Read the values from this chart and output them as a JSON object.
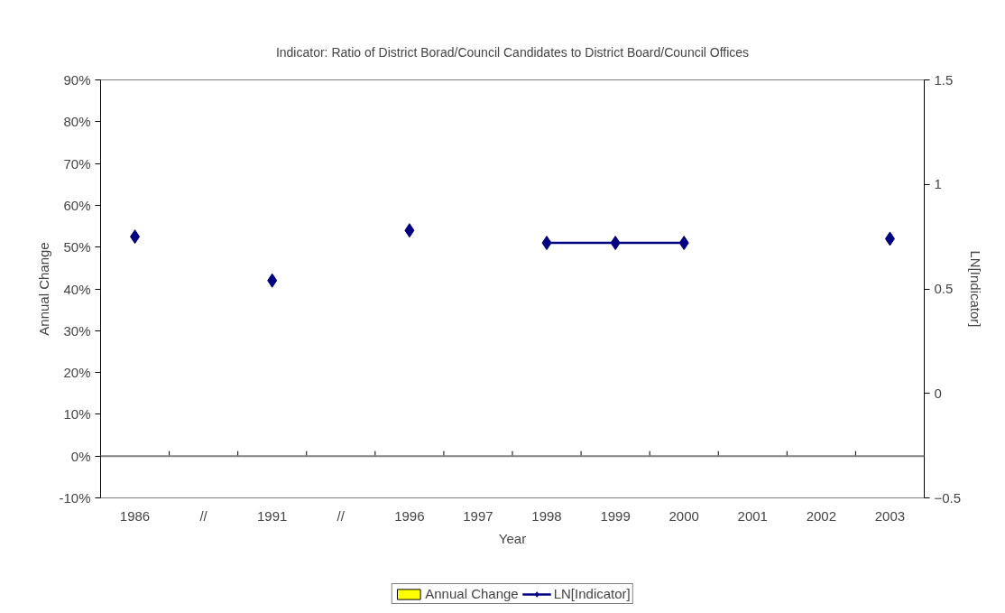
{
  "chart_data": {
    "type": "line",
    "title": "Indicator: Ratio of District Borad/Council Candidates to District Board/Council Offices",
    "xlabel": "Year",
    "ylabel": "Annual Change",
    "y2label": "LN[Indicator]",
    "categories": [
      "1986",
      "//",
      "1991",
      "//",
      "1996",
      "1997",
      "1998",
      "1999",
      "2000",
      "2001",
      "2002",
      "2003"
    ],
    "series": [
      {
        "name": "Annual Change",
        "type": "bar",
        "color": "#ffff00",
        "values": [
          null,
          null,
          null,
          null,
          null,
          null,
          null,
          null,
          null,
          null,
          null,
          null
        ]
      },
      {
        "name": "LN[Indicator]",
        "axis": "y2",
        "color": "#000080",
        "marker": "diamond",
        "values": [
          0.75,
          null,
          0.54,
          null,
          0.78,
          null,
          0.72,
          0.72,
          0.72,
          null,
          null,
          0.74
        ]
      }
    ],
    "ylim": [
      -10,
      90
    ],
    "yticks": [
      {
        "value": -10,
        "label": "-10%"
      },
      {
        "value": 0,
        "label": "0%"
      },
      {
        "value": 10,
        "label": "10%"
      },
      {
        "value": 20,
        "label": "20%"
      },
      {
        "value": 30,
        "label": "30%"
      },
      {
        "value": 40,
        "label": "40%"
      },
      {
        "value": 50,
        "label": "50%"
      },
      {
        "value": 60,
        "label": "60%"
      },
      {
        "value": 70,
        "label": "70%"
      },
      {
        "value": 80,
        "label": "80%"
      },
      {
        "value": 90,
        "label": "90%"
      }
    ],
    "y2lim": [
      -0.5,
      1.5
    ],
    "y2ticks": [
      -0.5,
      0,
      0.5,
      1,
      1.5
    ],
    "ref_lines": [
      {
        "axis": "y",
        "value": 0,
        "color": "#808080"
      }
    ],
    "grid": false,
    "legend": "bottom"
  }
}
